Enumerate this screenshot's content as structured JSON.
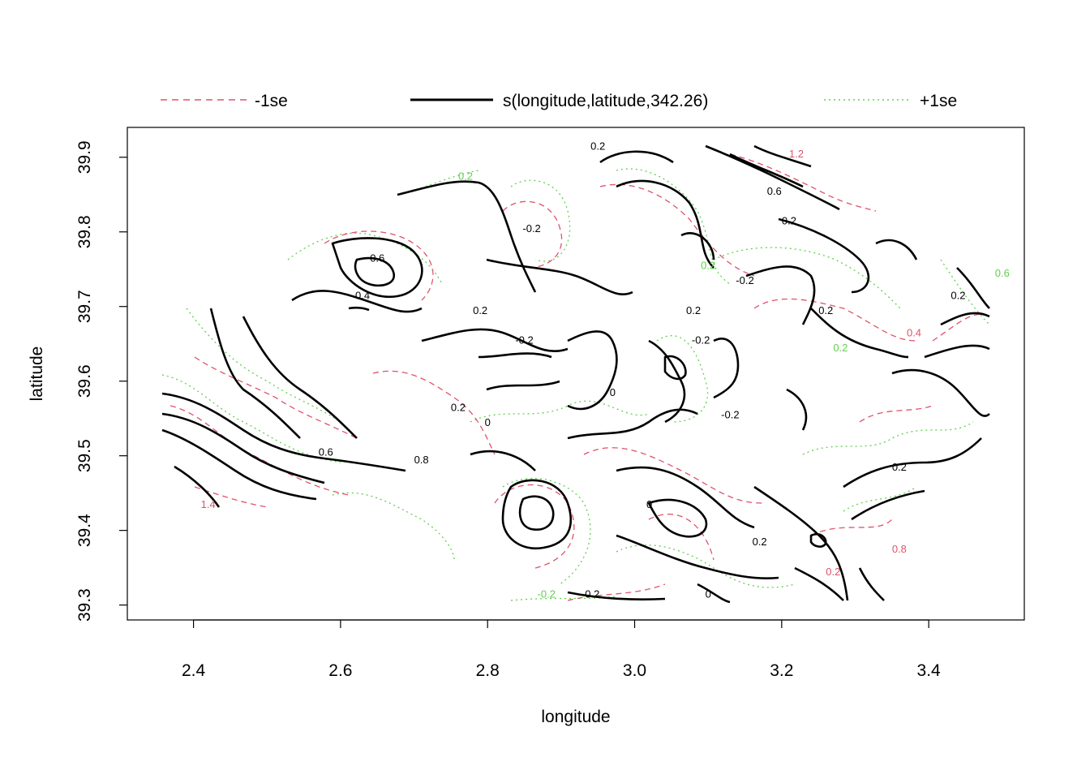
{
  "chart_data": {
    "type": "contour",
    "title": "",
    "xlabel": "longitude",
    "ylabel": "latitude",
    "xlim": [
      2.31,
      3.53
    ],
    "ylim": [
      39.28,
      39.94
    ],
    "xticks": [
      2.4,
      2.6,
      2.8,
      3.0,
      3.2,
      3.4
    ],
    "xtick_labels": [
      "2.4",
      "2.6",
      "2.8",
      "3.0",
      "3.2",
      "3.4"
    ],
    "yticks": [
      39.3,
      39.4,
      39.5,
      39.6,
      39.7,
      39.8,
      39.9
    ],
    "ytick_labels": [
      "39.3",
      "39.4",
      "39.5",
      "39.6",
      "39.7",
      "39.8",
      "39.9"
    ],
    "legend": {
      "position": "top",
      "entries": [
        {
          "label": "-1se",
          "color": "#DF536B",
          "style": "dashed"
        },
        {
          "label": "s(longitude,latitude,342.26)",
          "color": "#000000",
          "style": "solid"
        },
        {
          "label": "+1se",
          "color": "#61D04F",
          "style": "dotted"
        }
      ]
    },
    "series": [
      {
        "name": "s(longitude,latitude,342.26)",
        "color": "#000000",
        "style": "solid",
        "labels": [
          {
            "text": "0.2",
            "x": 2.95,
            "y": 39.91
          },
          {
            "text": "0.6",
            "x": 3.19,
            "y": 39.85
          },
          {
            "text": "0.2",
            "x": 3.21,
            "y": 39.81
          },
          {
            "text": "-0.2",
            "x": 2.86,
            "y": 39.8
          },
          {
            "text": "0.6",
            "x": 2.65,
            "y": 39.76
          },
          {
            "text": "0.4",
            "x": 2.63,
            "y": 39.71
          },
          {
            "text": "0.2",
            "x": 2.79,
            "y": 39.69
          },
          {
            "text": "-0.2",
            "x": 3.15,
            "y": 39.73
          },
          {
            "text": "0.2",
            "x": 3.08,
            "y": 39.69
          },
          {
            "text": "0.2",
            "x": 3.26,
            "y": 39.69
          },
          {
            "text": "-0.2",
            "x": 2.85,
            "y": 39.65
          },
          {
            "text": "-0.2",
            "x": 3.09,
            "y": 39.65
          },
          {
            "text": "0.2",
            "x": 3.44,
            "y": 39.71
          },
          {
            "text": "0",
            "x": 2.97,
            "y": 39.58
          },
          {
            "text": "-0.2",
            "x": 3.13,
            "y": 39.55
          },
          {
            "text": "0",
            "x": 2.8,
            "y": 39.54
          },
          {
            "text": "0.2",
            "x": 2.76,
            "y": 39.56
          },
          {
            "text": "0.8",
            "x": 2.71,
            "y": 39.49
          },
          {
            "text": "0.6",
            "x": 2.58,
            "y": 39.5
          },
          {
            "text": "0",
            "x": 3.02,
            "y": 39.43
          },
          {
            "text": "0.2",
            "x": 3.36,
            "y": 39.48
          },
          {
            "text": "0.2",
            "x": 3.17,
            "y": 39.38
          },
          {
            "text": "-0.2",
            "x": 2.94,
            "y": 39.31
          },
          {
            "text": "0",
            "x": 3.1,
            "y": 39.31
          }
        ]
      },
      {
        "name": "-1se",
        "color": "#DF536B",
        "style": "dashed",
        "labels": [
          {
            "text": "1.2",
            "x": 3.22,
            "y": 39.9
          },
          {
            "text": "0.4",
            "x": 3.38,
            "y": 39.66
          },
          {
            "text": "0.8",
            "x": 3.36,
            "y": 39.37
          },
          {
            "text": "1.4",
            "x": 2.42,
            "y": 39.43
          },
          {
            "text": "0.2",
            "x": 3.27,
            "y": 39.34
          }
        ]
      },
      {
        "name": "+1se",
        "color": "#61D04F",
        "style": "dotted",
        "labels": [
          {
            "text": "0.2",
            "x": 2.77,
            "y": 39.87
          },
          {
            "text": "0.2",
            "x": 3.1,
            "y": 39.75
          },
          {
            "text": "0.2",
            "x": 3.28,
            "y": 39.64
          },
          {
            "text": "0.6",
            "x": 3.5,
            "y": 39.74
          },
          {
            "text": "-0.2",
            "x": 2.88,
            "y": 39.31
          }
        ]
      }
    ]
  }
}
